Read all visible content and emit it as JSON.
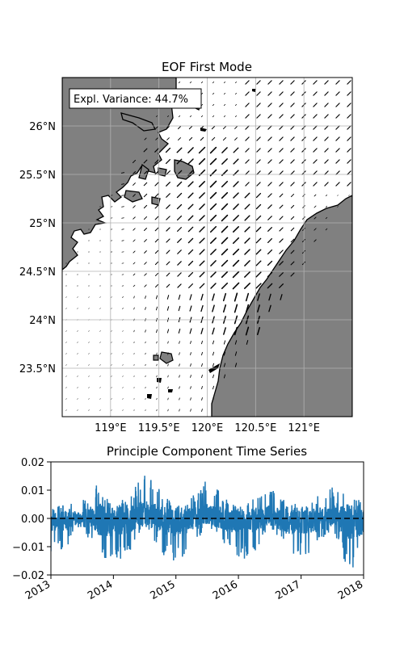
{
  "chart_data": [
    {
      "type": "map-quiver",
      "title": "EOF First Mode",
      "annotation": "Expl. Variance: 44.7%",
      "lon_ticks": [
        "119°E",
        "119.5°E",
        "120°E",
        "120.5°E",
        "121°E"
      ],
      "lat_ticks": [
        "26°N",
        "25.5°N",
        "25°N",
        "24.5°N",
        "24°N",
        "23.5°N"
      ],
      "lon_range": [
        118.5,
        121.5
      ],
      "lat_range": [
        23.0,
        26.5
      ],
      "grid": true,
      "land_color": "#808080",
      "arrow_color": "#000000"
    },
    {
      "type": "line",
      "title": "Principle Component Time Series",
      "x_ticks": [
        "2013",
        "2014",
        "2015",
        "2016",
        "2017",
        "2018"
      ],
      "y_ticks": [
        "0.02",
        "0.01",
        "0.00",
        "−0.01",
        "−0.02"
      ],
      "xlim": [
        "2013-01-01",
        "2018-01-01"
      ],
      "ylim": [
        -0.02,
        0.02
      ],
      "zero_line": {
        "y": 0.0,
        "style": "dashed",
        "color": "#000000"
      },
      "series_color": "#1f77b4",
      "seasonal_envelope": [
        {
          "x": "2013-01-01",
          "high": 0.004,
          "low": -0.012
        },
        {
          "x": "2013-04-01",
          "high": 0.005,
          "low": -0.011
        },
        {
          "x": "2013-07-01",
          "high": 0.006,
          "low": -0.003
        },
        {
          "x": "2013-10-01",
          "high": 0.013,
          "low": -0.014
        },
        {
          "x": "2014-01-01",
          "high": 0.005,
          "low": -0.016
        },
        {
          "x": "2014-04-01",
          "high": 0.008,
          "low": -0.013
        },
        {
          "x": "2014-07-01",
          "high": 0.017,
          "low": -0.002
        },
        {
          "x": "2014-10-01",
          "high": 0.01,
          "low": -0.012
        },
        {
          "x": "2015-01-01",
          "high": 0.004,
          "low": -0.017
        },
        {
          "x": "2015-04-01",
          "high": 0.008,
          "low": -0.012
        },
        {
          "x": "2015-07-01",
          "high": 0.014,
          "low": -0.002
        },
        {
          "x": "2015-10-01",
          "high": 0.009,
          "low": -0.01
        },
        {
          "x": "2016-01-01",
          "high": 0.004,
          "low": -0.015
        },
        {
          "x": "2016-04-01",
          "high": 0.007,
          "low": -0.013
        },
        {
          "x": "2016-07-01",
          "high": 0.012,
          "low": -0.002
        },
        {
          "x": "2016-10-01",
          "high": 0.007,
          "low": -0.013
        },
        {
          "x": "2017-01-01",
          "high": 0.004,
          "low": -0.014
        },
        {
          "x": "2017-04-01",
          "high": 0.008,
          "low": -0.012
        },
        {
          "x": "2017-07-01",
          "high": 0.012,
          "low": -0.003
        },
        {
          "x": "2017-10-01",
          "high": 0.01,
          "low": -0.019
        },
        {
          "x": "2018-01-01",
          "high": 0.005,
          "low": -0.015
        }
      ]
    }
  ]
}
